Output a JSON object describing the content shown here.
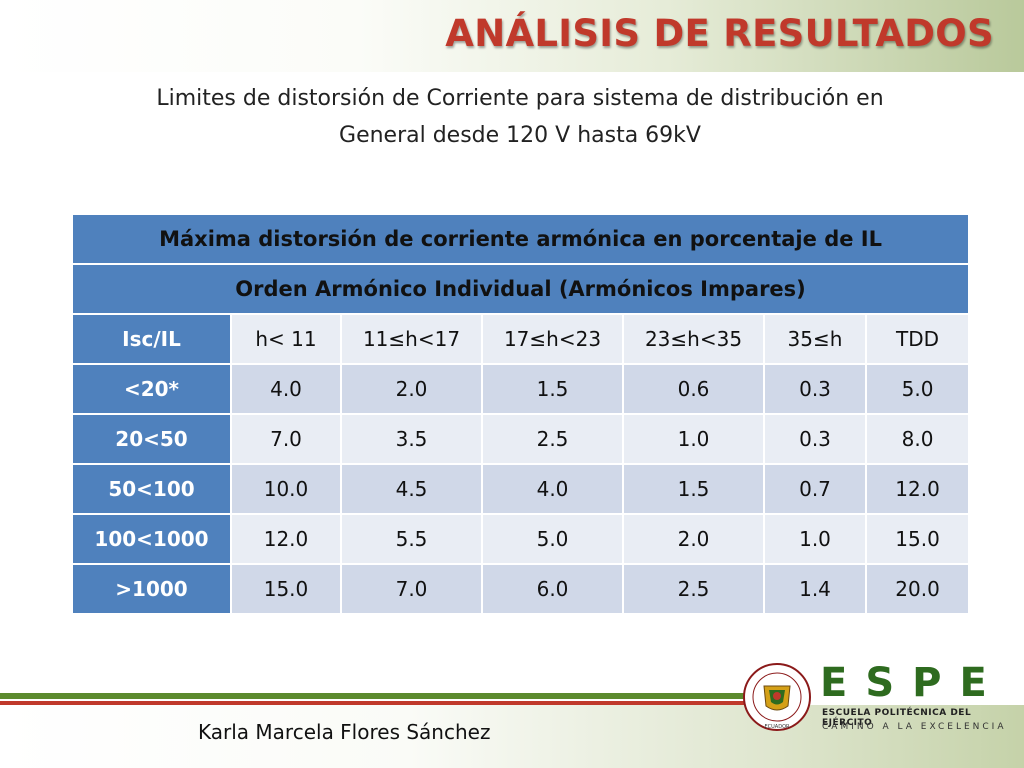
{
  "header": {
    "title": "ANÁLISIS DE RESULTADOS"
  },
  "subtitle": {
    "line1": "Limites de distorsión de Corriente para sistema de distribución en",
    "line2": "General desde 120 V hasta 69kV"
  },
  "table": {
    "title": "Máxima distorsión de corriente armónica en porcentaje de IL",
    "subtitle": "Orden Armónico Individual (Armónicos Impares)",
    "columns": [
      "Isc/IL",
      "h< 11",
      "11≤h<17",
      "17≤h<23",
      "23≤h<35",
      "35≤h",
      "TDD"
    ],
    "rows": [
      [
        "<20*",
        "4.0",
        "2.0",
        "1.5",
        "0.6",
        "0.3",
        "5.0"
      ],
      [
        "20<50",
        "7.0",
        "3.5",
        "2.5",
        "1.0",
        "0.3",
        "8.0"
      ],
      [
        "50<100",
        "10.0",
        "4.5",
        "4.0",
        "1.5",
        "0.7",
        "12.0"
      ],
      [
        "100<1000",
        "12.0",
        "5.5",
        "5.0",
        "2.0",
        "1.0",
        "15.0"
      ],
      [
        ">1000",
        "15.0",
        "7.0",
        "6.0",
        "2.5",
        "1.4",
        "20.0"
      ]
    ]
  },
  "footer": {
    "author": "Karla Marcela Flores Sánchez",
    "seal_text_top": "ESCUELA POLITÉCNICA DEL EJÉRCITO",
    "seal_text_bottom": "ECUADOR",
    "logo_word": "ESPE",
    "logo_line1": "ESCUELA POLITÉCNICA DEL EJÉRCITO",
    "logo_line2": "CAMINO A LA EXCELENCIA"
  },
  "colors": {
    "title_red": "#c0392b",
    "table_blue": "#4f81bd",
    "row_light": "#e9edf4",
    "row_dark": "#d0d8e8",
    "logo_green": "#2e6b1f"
  }
}
